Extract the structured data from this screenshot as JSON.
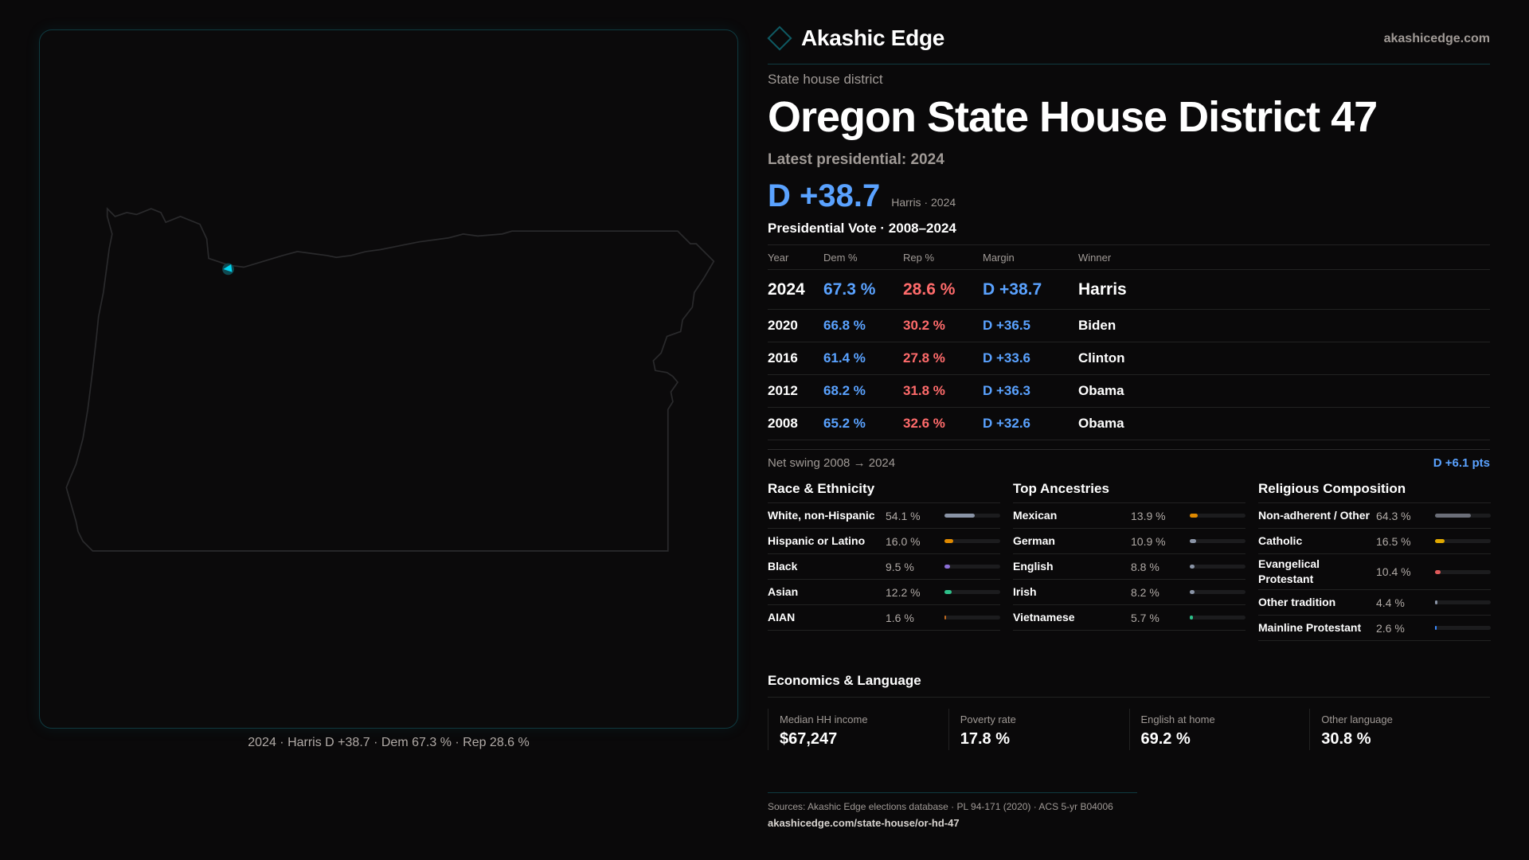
{
  "colors": {
    "dem": "#5aa2ff",
    "rep": "#ff6b6b",
    "accent": "#00d4f0",
    "panel_border": "#0f3a40"
  },
  "map": {
    "caption": "2024 · Harris D +38.7 · Dem 67.3 % · Rep 28.6 %",
    "highlight_icon": "district-marker"
  },
  "header": {
    "brand": "Akashic Edge",
    "site": "akashicedge.com",
    "eyebrow": "State house district",
    "title": "Oregon State House District 47"
  },
  "latest": {
    "label": "Latest presidential: 2024",
    "margin": "D +38.7",
    "sub": "Harris · 2024"
  },
  "presidential": {
    "title": "Presidential Vote · 2008–2024",
    "columns": [
      "Year",
      "Dem %",
      "Rep %",
      "Margin",
      "Winner"
    ],
    "rows": [
      {
        "year": "2024",
        "dem": "67.3 %",
        "rep": "28.6 %",
        "margin": "D +38.7",
        "winner": "Harris"
      },
      {
        "year": "2020",
        "dem": "66.8 %",
        "rep": "30.2 %",
        "margin": "D +36.5",
        "winner": "Biden"
      },
      {
        "year": "2016",
        "dem": "61.4 %",
        "rep": "27.8 %",
        "margin": "D +33.6",
        "winner": "Clinton"
      },
      {
        "year": "2012",
        "dem": "68.2 %",
        "rep": "31.8 %",
        "margin": "D +36.3",
        "winner": "Obama"
      },
      {
        "year": "2008",
        "dem": "65.2 %",
        "rep": "32.6 %",
        "margin": "D +32.6",
        "winner": "Obama"
      }
    ],
    "swing_label": "Net swing 2008 → 2024",
    "swing_value": "D +6.1 pts"
  },
  "sections": [
    {
      "title": "Race & Ethnicity",
      "items": [
        {
          "label": "White, non-Hispanic",
          "pct": "54.1 %",
          "value": 54.1,
          "color": "#8a94a6"
        },
        {
          "label": "Hispanic or Latino",
          "pct": "16.0 %",
          "value": 16.0,
          "color": "#e08a00"
        },
        {
          "label": "Black",
          "pct": "9.5 %",
          "value": 9.5,
          "color": "#8b6fd6"
        },
        {
          "label": "Asian",
          "pct": "12.2 %",
          "value": 12.2,
          "color": "#2ec08a"
        },
        {
          "label": "AIAN",
          "pct": "1.6 %",
          "value": 1.6,
          "color": "#c06a20"
        }
      ]
    },
    {
      "title": "Top Ancestries",
      "items": [
        {
          "label": "Mexican",
          "pct": "13.9 %",
          "value": 13.9,
          "color": "#e08a00"
        },
        {
          "label": "German",
          "pct": "10.9 %",
          "value": 10.9,
          "color": "#8a94a6"
        },
        {
          "label": "English",
          "pct": "8.8 %",
          "value": 8.8,
          "color": "#8a94a6"
        },
        {
          "label": "Irish",
          "pct": "8.2 %",
          "value": 8.2,
          "color": "#8a94a6"
        },
        {
          "label": "Vietnamese",
          "pct": "5.7 %",
          "value": 5.7,
          "color": "#2ec08a"
        }
      ]
    },
    {
      "title": "Religious Composition",
      "items": [
        {
          "label": "Non-adherent / Other",
          "pct": "64.3 %",
          "value": 64.3,
          "color": "#6b6e78"
        },
        {
          "label": "Catholic",
          "pct": "16.5 %",
          "value": 16.5,
          "color": "#e0a800"
        },
        {
          "label": "Evangelical Protestant",
          "pct": "10.4 %",
          "value": 10.4,
          "color": "#e05a5a"
        },
        {
          "label": "Other tradition",
          "pct": "4.4 %",
          "value": 4.4,
          "color": "#8a94a6"
        },
        {
          "label": "Mainline Protestant",
          "pct": "2.6 %",
          "value": 2.6,
          "color": "#3a8aff"
        }
      ]
    }
  ],
  "economics": {
    "title": "Economics & Language",
    "cards": [
      {
        "label": "Median HH income",
        "value": "$67,247"
      },
      {
        "label": "Poverty rate",
        "value": "17.8 %"
      },
      {
        "label": "English at home",
        "value": "69.2 %"
      },
      {
        "label": "Other language",
        "value": "30.8 %"
      }
    ]
  },
  "footer": {
    "sources": "Sources: Akashic Edge elections database · PL 94-171 (2020) · ACS 5-yr B04006",
    "url": "akashicedge.com/state-house/or-hd-47"
  }
}
